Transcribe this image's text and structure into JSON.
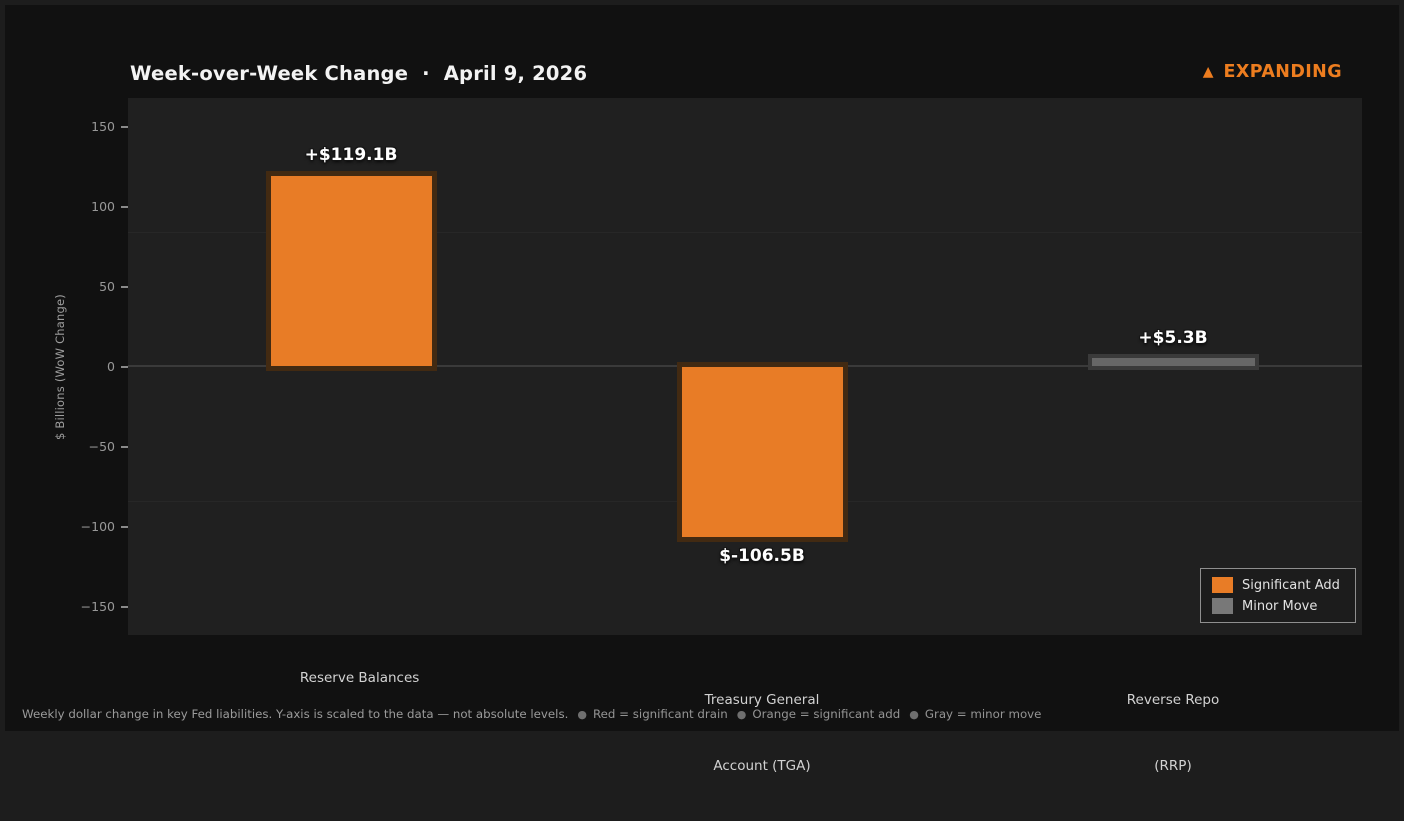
{
  "header": {
    "title": "Week-over-Week Change",
    "separator": "·",
    "date": "April 9, 2026",
    "status_icon": "▲",
    "status_label": "EXPANDING",
    "status_color": "#ED7D1F"
  },
  "chart_data": {
    "type": "bar",
    "title": "Week-over-Week Change · April 9, 2026",
    "categories": [
      "Reserve Balances",
      "Treasury General\nAccount (TGA)",
      "Reverse Repo\n(RRP)"
    ],
    "categories_lines": [
      [
        "Reserve Balances"
      ],
      [
        "Treasury General",
        "Account (TGA)"
      ],
      [
        "Reverse Repo",
        "(RRP)"
      ]
    ],
    "values": [
      119.1,
      -106.5,
      5.3
    ],
    "value_labels": [
      "+$119.1B",
      "$-106.5B",
      "+$5.3B"
    ],
    "bar_colors": [
      "#E87C26",
      "#E87C26",
      "#676767"
    ],
    "bar_edge_colors": [
      "#422A12",
      "#422A12",
      "#3A3A3A"
    ],
    "xlabel": "",
    "ylabel": "$ Billions (WoW Change)",
    "y_ticks": [
      150,
      100,
      50,
      0,
      -50,
      -100,
      -150
    ],
    "y_tick_labels": [
      "150",
      "100",
      "50",
      "0",
      "−50",
      "−100",
      "−150"
    ],
    "ylim": [
      -168,
      168
    ],
    "grid": "zero-line only",
    "plot_bg": "#202020",
    "figure_bg": "#111111",
    "legend": {
      "position": "lower right",
      "entries": [
        {
          "label": "Significant Add",
          "color": "#E87C26"
        },
        {
          "label": "Minor Move",
          "color": "#787878"
        }
      ]
    }
  },
  "footer": {
    "lead": "Weekly dollar change in key Fed liabilities. Y-axis is scaled to the data — not absolute levels.",
    "bullet_icon": "●",
    "bullets": [
      "Red = significant drain",
      "Orange = significant add",
      "Gray = minor move"
    ]
  }
}
